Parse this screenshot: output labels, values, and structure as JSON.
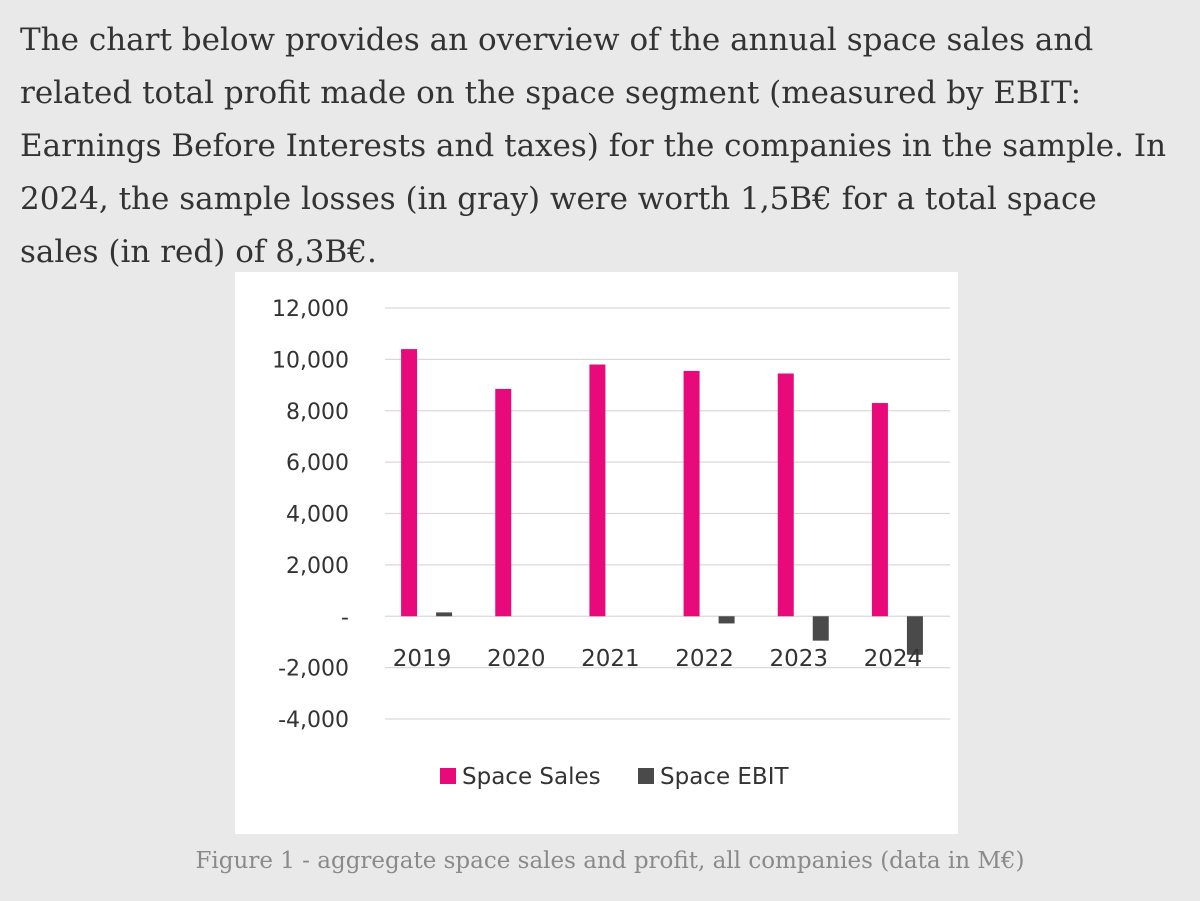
{
  "intro_text": "The chart below provides an overview of the annual space sales and related total profit made on the space segment (measured by EBIT: Earnings Before Interests and taxes) for the companies in the sample. In 2024, the sample losses (in gray) were worth 1,5B€ for a total space sales (in red) of 8,3B€.",
  "caption": "Figure 1 - aggregate space sales and profit, all companies (data in M€)",
  "colors": {
    "sales": "#e8097a",
    "ebit": "#4a4a4a",
    "grid": "#d9d9d9",
    "text": "#333333"
  },
  "chart_data": {
    "type": "bar",
    "title": "",
    "xlabel": "",
    "ylabel": "",
    "categories": [
      "2019",
      "2020",
      "2021",
      "2022",
      "2023",
      "2024"
    ],
    "series": [
      {
        "name": "Space Sales",
        "values": [
          10400,
          8850,
          9800,
          9550,
          9450,
          8300
        ]
      },
      {
        "name": "Space EBIT",
        "values": [
          150,
          0,
          0,
          -280,
          -950,
          -1500
        ]
      }
    ],
    "ylim": [
      -4000,
      12000
    ],
    "yticks": [
      12000,
      10000,
      8000,
      6000,
      4000,
      2000,
      0,
      -2000,
      -4000
    ],
    "ytick_labels": [
      "12,000",
      "10,000",
      "8,000",
      "6,000",
      "4,000",
      "2,000",
      "-",
      "-2,000",
      "-4,000"
    ],
    "grid": true,
    "legend": "bottom"
  }
}
